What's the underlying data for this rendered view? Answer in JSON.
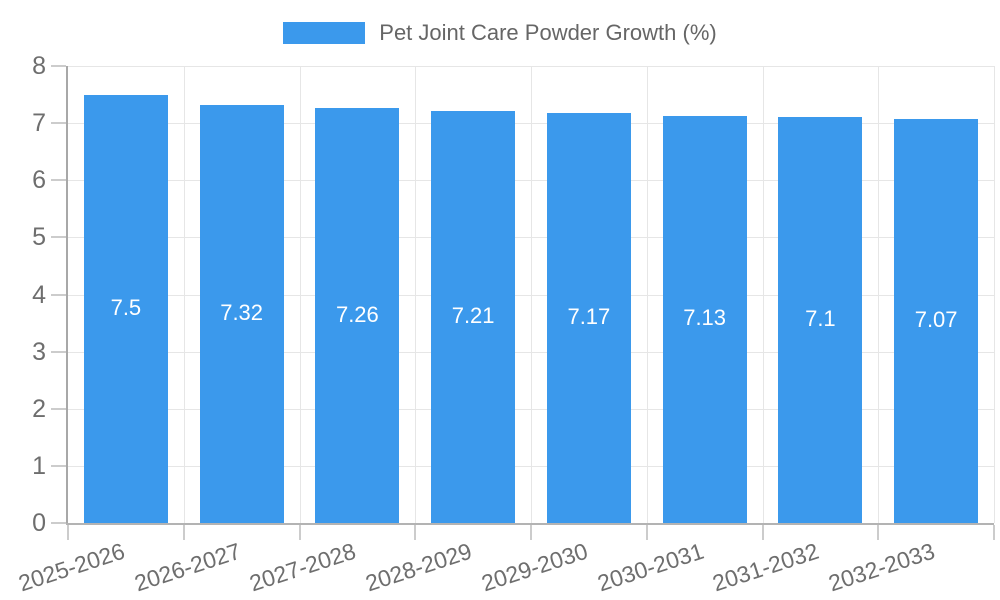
{
  "chart_data": {
    "type": "bar",
    "title": "",
    "legend": {
      "position": "top",
      "label": "Pet Joint Care Powder Growth (%)"
    },
    "categories": [
      "2025-2026",
      "2026-2027",
      "2027-2028",
      "2028-2029",
      "2029-2030",
      "2030-2031",
      "2031-2032",
      "2032-2033"
    ],
    "values": [
      7.5,
      7.32,
      7.26,
      7.21,
      7.17,
      7.13,
      7.1,
      7.07
    ],
    "value_labels": [
      "7.5",
      "7.32",
      "7.26",
      "7.21",
      "7.17",
      "7.13",
      "7.1",
      "7.07"
    ],
    "xlabel": "",
    "ylabel": "",
    "ylim": [
      0,
      8
    ],
    "yticks": [
      0,
      1,
      2,
      3,
      4,
      5,
      6,
      7,
      8
    ],
    "grid": true,
    "colors": {
      "bar": "#3b99ec",
      "grid": "#e6e6e6",
      "axis": "#b0b0b0",
      "tick": "#cccccc",
      "axis_label": "#6e6e6e",
      "value_label": "#ffffff",
      "legend_text": "#666666"
    }
  }
}
